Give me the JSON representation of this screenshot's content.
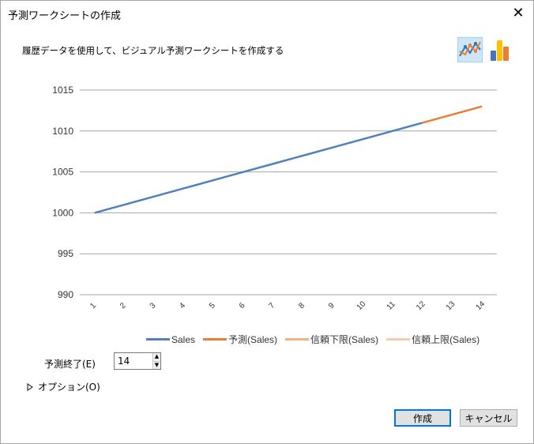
{
  "window": {
    "title": "予測ワークシートの作成",
    "close_label": "✕"
  },
  "description": "履歴データを使用して、ビジュアル予測ワークシートを作成する",
  "chart_type_icons": [
    {
      "name": "line-chart-icon",
      "selected": true
    },
    {
      "name": "bar-chart-icon",
      "selected": false
    }
  ],
  "chart_data": {
    "type": "line",
    "x": [
      1,
      2,
      3,
      4,
      5,
      6,
      7,
      8,
      9,
      10,
      11,
      12,
      13,
      14
    ],
    "series": [
      {
        "name": "Sales",
        "color": "#4f81bd",
        "x": [
          1,
          2,
          3,
          4,
          5,
          6,
          7,
          8,
          9,
          10,
          11,
          12
        ],
        "values": [
          1000,
          1001,
          1002,
          1003,
          1004,
          1005,
          1006,
          1007,
          1008,
          1009,
          1010,
          1011
        ]
      },
      {
        "name": "予測(Sales)",
        "color": "#ed7d31",
        "x": [
          12,
          13,
          14
        ],
        "values": [
          1011,
          1012,
          1013
        ]
      },
      {
        "name": "信頼下限(Sales)",
        "color": "#f4b183",
        "x": [],
        "values": []
      },
      {
        "name": "信頼上限(Sales)",
        "color": "#f8cbad",
        "x": [],
        "values": []
      }
    ],
    "y_ticks": [
      990,
      995,
      1000,
      1005,
      1010,
      1015
    ],
    "ylim": [
      990,
      1015
    ],
    "grid": true,
    "legend": "bottom"
  },
  "forecast_end": {
    "label": "予測終了(E)",
    "value": "14"
  },
  "options": {
    "label": "オプション(O)"
  },
  "buttons": {
    "create": "作成",
    "cancel": "キャンセル"
  }
}
